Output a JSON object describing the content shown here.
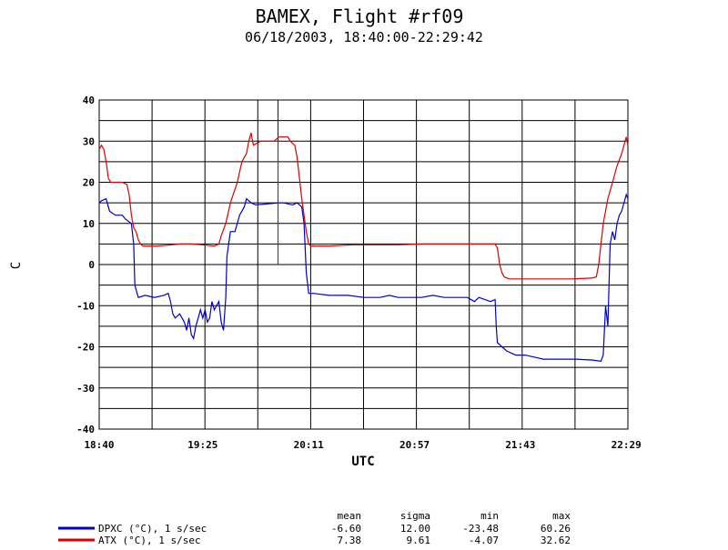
{
  "chart_data": {
    "type": "line",
    "title": "BAMEX, Flight #rf09",
    "subtitle": "06/18/2003, 18:40:00-22:29:42",
    "xlabel": "UTC",
    "ylabel": "C",
    "x_ticks": [
      "18:40",
      "19:25",
      "20:11",
      "20:57",
      "21:43",
      "22:29"
    ],
    "x_tick_minutes": [
      0,
      45,
      91,
      137,
      183,
      229
    ],
    "y_ticks": [
      40,
      30,
      20,
      10,
      0,
      -10,
      -20,
      -30,
      -40
    ],
    "xlim_minutes": [
      0,
      229.7
    ],
    "ylim": [
      -40,
      40
    ],
    "grid": true,
    "stats_headers": [
      "mean",
      "sigma",
      "min",
      "max"
    ],
    "series": [
      {
        "name": "DPXC (°C), 1 s/sec",
        "color": "#0000cc",
        "stats": [
          "-6.60",
          "12.00",
          "-23.48",
          "60.26"
        ],
        "points": [
          [
            0,
            15
          ],
          [
            1,
            15.5
          ],
          [
            3,
            16
          ],
          [
            4.5,
            13
          ],
          [
            7,
            12
          ],
          [
            10,
            12
          ],
          [
            11.5,
            11
          ],
          [
            14,
            10
          ],
          [
            15,
            5
          ],
          [
            15.5,
            -5
          ],
          [
            16.5,
            -7
          ],
          [
            17,
            -8
          ],
          [
            20,
            -7.5
          ],
          [
            24,
            -8
          ],
          [
            28,
            -7.5
          ],
          [
            30,
            -7
          ],
          [
            31,
            -9
          ],
          [
            32,
            -12
          ],
          [
            33,
            -13
          ],
          [
            35,
            -12
          ],
          [
            37,
            -14
          ],
          [
            38,
            -16
          ],
          [
            39,
            -13
          ],
          [
            40,
            -17
          ],
          [
            41,
            -18
          ],
          [
            42,
            -15
          ],
          [
            43,
            -13
          ],
          [
            44,
            -11
          ],
          [
            45,
            -13
          ],
          [
            46,
            -11
          ],
          [
            47,
            -14
          ],
          [
            48,
            -13
          ],
          [
            49,
            -9
          ],
          [
            50,
            -11
          ],
          [
            52,
            -9
          ],
          [
            53,
            -14
          ],
          [
            54,
            -16
          ],
          [
            55,
            -8
          ],
          [
            55.5,
            2
          ],
          [
            57,
            8
          ],
          [
            59,
            8
          ],
          [
            61,
            12
          ],
          [
            63,
            14
          ],
          [
            64,
            16
          ],
          [
            66,
            15
          ],
          [
            68,
            14.5
          ],
          [
            78,
            15
          ],
          [
            80,
            15
          ],
          [
            84,
            14.5
          ],
          [
            86,
            15
          ],
          [
            88,
            14
          ],
          [
            89,
            10
          ],
          [
            90,
            -2
          ],
          [
            91,
            -7
          ],
          [
            93,
            -7
          ],
          [
            100,
            -7.5
          ],
          [
            108,
            -7.5
          ],
          [
            115,
            -8
          ],
          [
            122,
            -8
          ],
          [
            126,
            -7.5
          ],
          [
            130,
            -8
          ],
          [
            136,
            -8
          ],
          [
            140,
            -8
          ],
          [
            145,
            -7.5
          ],
          [
            150,
            -8
          ],
          [
            155,
            -8
          ],
          [
            160,
            -8
          ],
          [
            163,
            -9
          ],
          [
            165,
            -8
          ],
          [
            170,
            -9
          ],
          [
            172,
            -8.5
          ],
          [
            172.5,
            -15
          ],
          [
            173,
            -19
          ],
          [
            175,
            -20
          ],
          [
            177,
            -21
          ],
          [
            181,
            -22
          ],
          [
            185,
            -22
          ],
          [
            189,
            -22.5
          ],
          [
            193,
            -23
          ],
          [
            200,
            -23
          ],
          [
            207,
            -23
          ],
          [
            214,
            -23.2
          ],
          [
            218,
            -23.5
          ],
          [
            219,
            -22
          ],
          [
            220,
            -10
          ],
          [
            221,
            -15
          ],
          [
            222,
            5
          ],
          [
            223,
            8
          ],
          [
            224,
            6
          ],
          [
            225,
            10
          ],
          [
            226,
            12
          ],
          [
            227,
            13
          ],
          [
            228,
            15
          ],
          [
            229,
            17
          ],
          [
            229.7,
            16
          ]
        ],
        "spikes": [
          [
            77.7,
            40
          ],
          [
            77.7,
            0
          ]
        ]
      },
      {
        "name": "ATX (°C), 1 s/sec",
        "color": "#dd0000",
        "stats": [
          "7.38",
          "9.61",
          "-4.07",
          "32.62"
        ],
        "points": [
          [
            0,
            28
          ],
          [
            1,
            29
          ],
          [
            2,
            28
          ],
          [
            3,
            25
          ],
          [
            4,
            21
          ],
          [
            5,
            20
          ],
          [
            10,
            20
          ],
          [
            12,
            19.5
          ],
          [
            13,
            17
          ],
          [
            14,
            12
          ],
          [
            15,
            9
          ],
          [
            16,
            8
          ],
          [
            17,
            6
          ],
          [
            18,
            5
          ],
          [
            19,
            4.5
          ],
          [
            25,
            4.5
          ],
          [
            30,
            4.7
          ],
          [
            35,
            5
          ],
          [
            40,
            5
          ],
          [
            45,
            4.8
          ],
          [
            50,
            4.5
          ],
          [
            52,
            5
          ],
          [
            53,
            7
          ],
          [
            55,
            10
          ],
          [
            57,
            15
          ],
          [
            60,
            20
          ],
          [
            62,
            25
          ],
          [
            64,
            27
          ],
          [
            65,
            30
          ],
          [
            66,
            32
          ],
          [
            67,
            29
          ],
          [
            70,
            30
          ],
          [
            71,
            30
          ],
          [
            76,
            30
          ],
          [
            78,
            31
          ],
          [
            82,
            31
          ],
          [
            83,
            30
          ],
          [
            85,
            29
          ],
          [
            86,
            26
          ],
          [
            87,
            21
          ],
          [
            88,
            16
          ],
          [
            89,
            12
          ],
          [
            90,
            8
          ],
          [
            91,
            5
          ],
          [
            92,
            4.5
          ],
          [
            100,
            4.5
          ],
          [
            110,
            4.8
          ],
          [
            120,
            4.8
          ],
          [
            130,
            4.8
          ],
          [
            140,
            5
          ],
          [
            150,
            5
          ],
          [
            160,
            5
          ],
          [
            170,
            5
          ],
          [
            172,
            5
          ],
          [
            173,
            4
          ],
          [
            174,
            0
          ],
          [
            175,
            -2
          ],
          [
            176,
            -3
          ],
          [
            178,
            -3.5
          ],
          [
            186,
            -3.5
          ],
          [
            195,
            -3.5
          ],
          [
            205,
            -3.5
          ],
          [
            214,
            -3.3
          ],
          [
            216,
            -3
          ],
          [
            217,
            0
          ],
          [
            218,
            5
          ],
          [
            219,
            10
          ],
          [
            221,
            16
          ],
          [
            223,
            20
          ],
          [
            225,
            24
          ],
          [
            227,
            27
          ],
          [
            228,
            29
          ],
          [
            229,
            31
          ],
          [
            229.7,
            29
          ]
        ],
        "spikes": [
          [
            77.7,
            0
          ],
          [
            77.7,
            30
          ]
        ]
      }
    ]
  }
}
